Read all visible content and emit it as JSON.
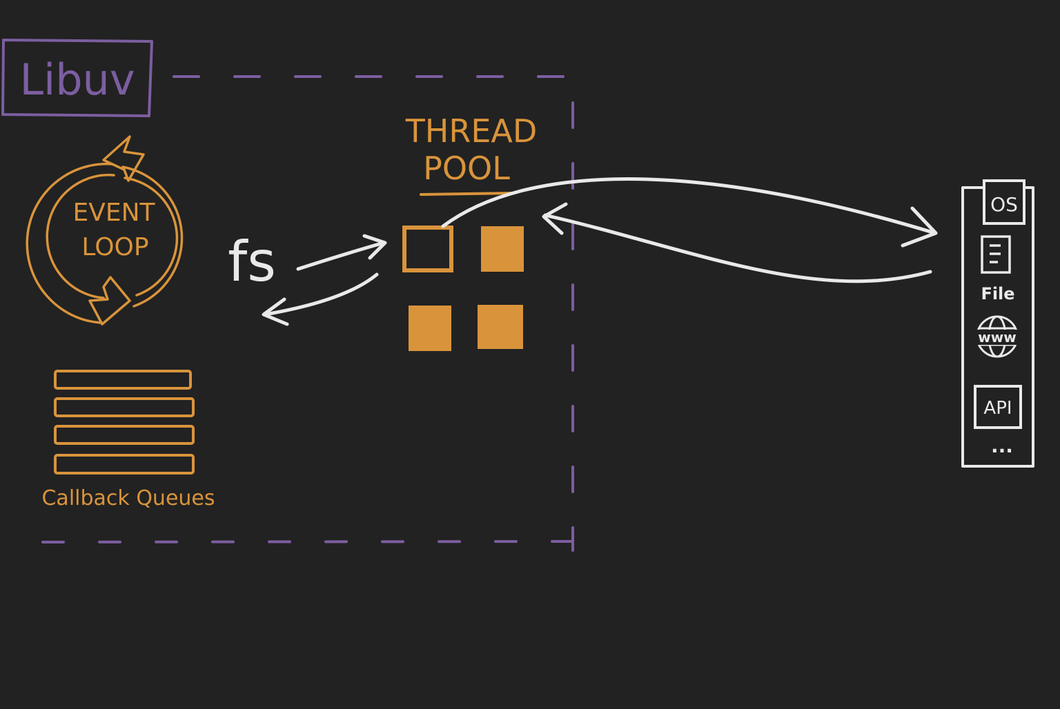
{
  "colors": {
    "background": "#222222",
    "purple": "#7c5ea0",
    "orange": "#d9943b",
    "white": "#e9e9e9"
  },
  "libuv": {
    "label": "Libuv"
  },
  "event_loop": {
    "line1": "EVENT",
    "line2": "LOOP"
  },
  "thread_pool": {
    "line1": "THREAD",
    "line2": "POOL"
  },
  "fs": {
    "label": "fs"
  },
  "callback_queues": {
    "label": "Callback Queues"
  },
  "os_panel": {
    "os_label": "OS",
    "file_label": "File",
    "www_label": "www",
    "api_label": "API",
    "more_label": "..."
  },
  "icons": [
    "refresh-cycle-icon",
    "document-icon",
    "globe-icon"
  ]
}
